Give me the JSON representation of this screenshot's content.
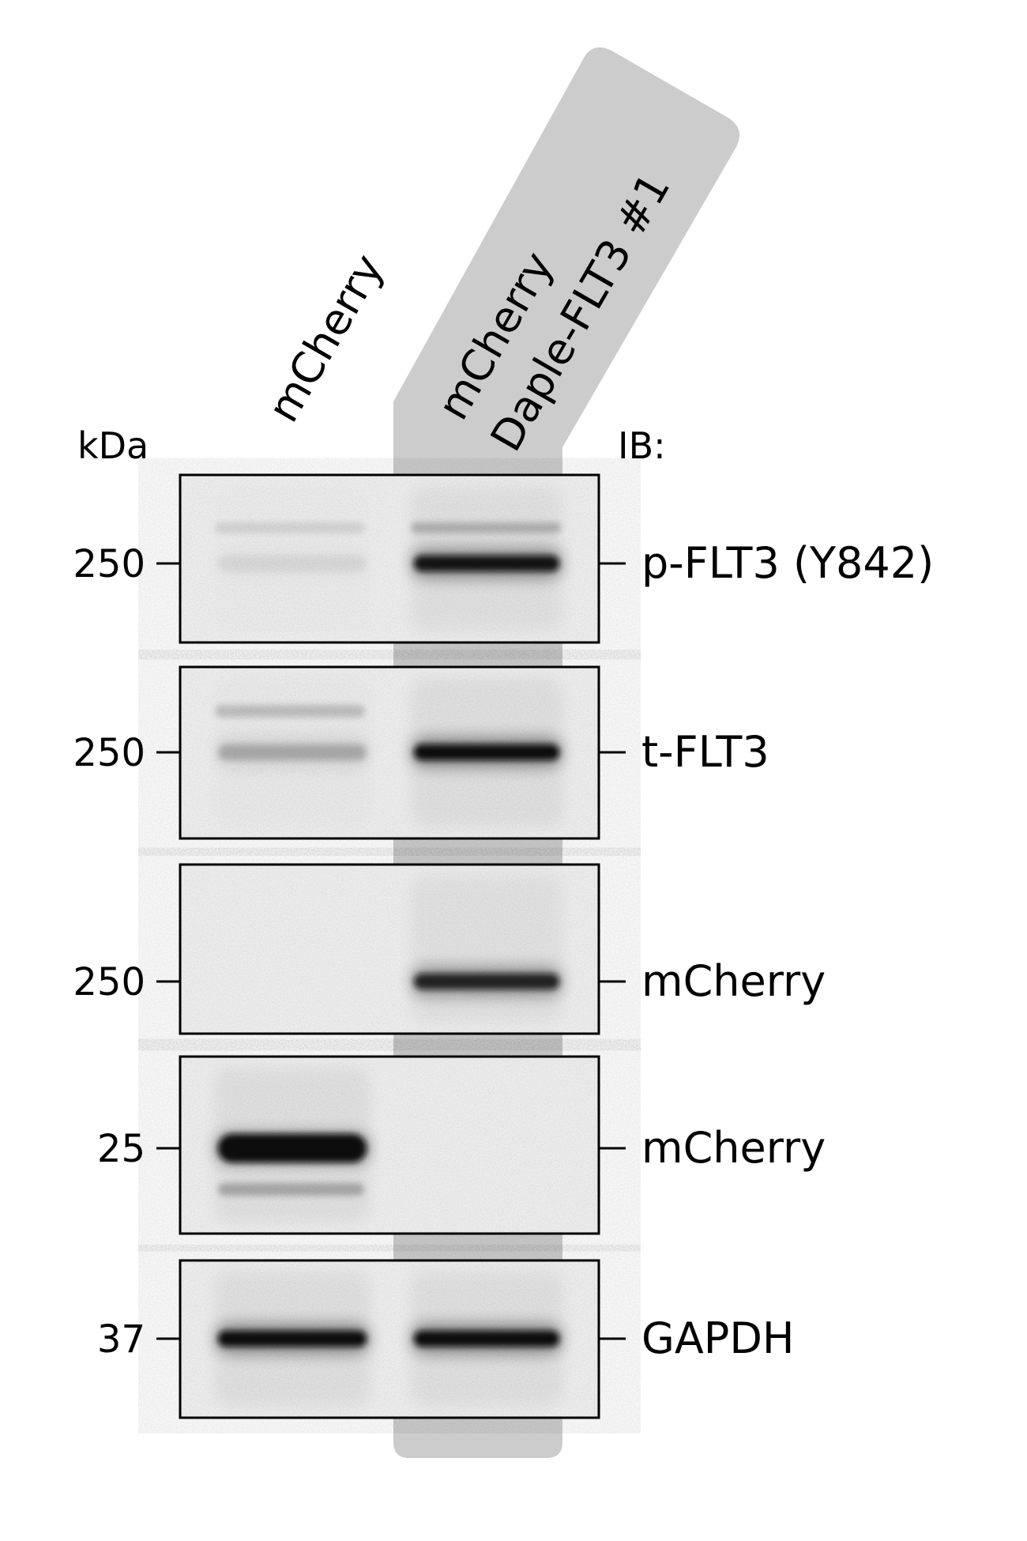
{
  "lanes": [
    {
      "label_lines": [
        "mCherry"
      ],
      "highlighted": false
    },
    {
      "label_lines": [
        "mCherry",
        "Daple-FLT3 #1"
      ],
      "highlighted": true
    }
  ],
  "headers": {
    "left": "kDa",
    "right": "IB:"
  },
  "panels": [
    {
      "marker": "250",
      "antibody": "p-FLT3 (Y842)",
      "band_intensity": [
        0.06,
        0.95
      ]
    },
    {
      "marker": "250",
      "antibody": "t-FLT3",
      "band_intensity": [
        0.22,
        1.0
      ]
    },
    {
      "marker": "250",
      "antibody": "mCherry",
      "band_intensity": [
        0.0,
        0.85
      ]
    },
    {
      "marker": "25",
      "antibody": "mCherry",
      "band_intensity": [
        1.0,
        0.0
      ]
    },
    {
      "marker": "37",
      "antibody": "GAPDH",
      "band_intensity": [
        1.0,
        1.0
      ]
    }
  ],
  "colors": {
    "highlight": "#cccccc",
    "band": "#111111",
    "frame": "#000000",
    "text": "#000000"
  }
}
